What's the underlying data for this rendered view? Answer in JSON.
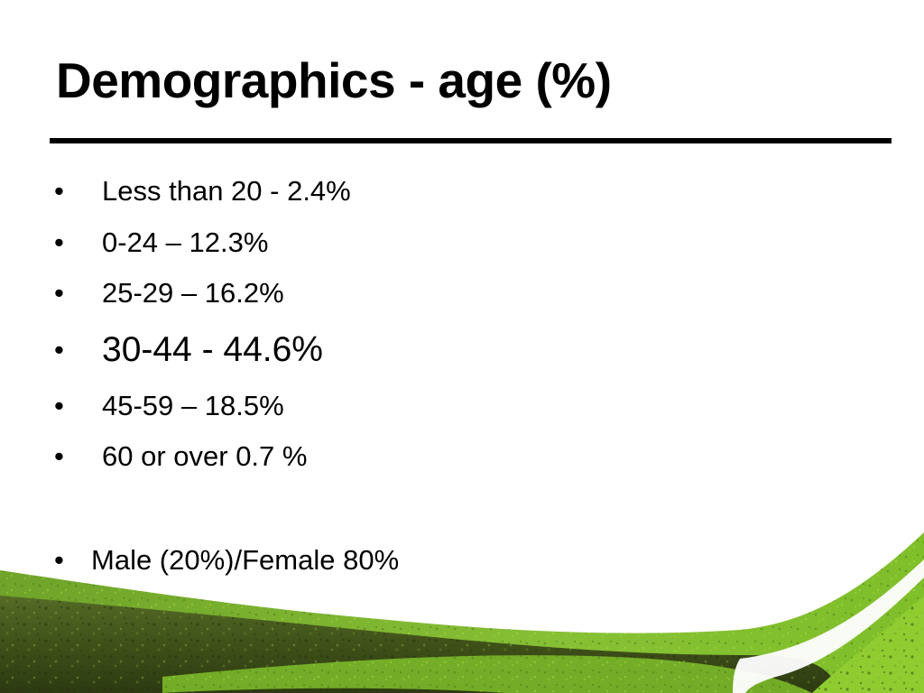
{
  "slide": {
    "title": "Demographics - age (%)",
    "bullet_glyph": "•",
    "bullets": [
      {
        "text": "Less than 20 -  2.4%"
      },
      {
        "text": "0-24 – 12.3%"
      },
      {
        "text": "25-29 – 16.2%"
      },
      {
        "text": "30-44 - 44.6%"
      },
      {
        "text": "45-59 – 18.5%"
      },
      {
        "text": "60 or over 0.7 %"
      },
      {
        "text": "Male (20%)/Female 80%"
      }
    ]
  },
  "theme": {
    "text_color": "#000000",
    "rule_color": "#000000",
    "grass_dark": "#3a4a1c",
    "grass_mid": "#5a7a24",
    "grass_light": "#7fbf2a",
    "grass_bright": "#9ad13a"
  }
}
